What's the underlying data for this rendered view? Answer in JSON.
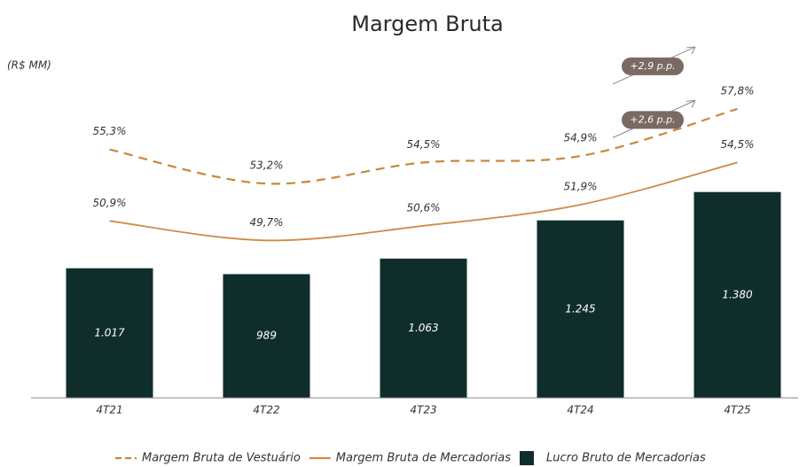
{
  "chart_data": {
    "type": "bar",
    "title": "Margem Bruta",
    "unit_label": "(R$ MM)",
    "categories": [
      "4T21",
      "4T22",
      "4T23",
      "4T24",
      "4T25"
    ],
    "ylim": [
      400,
      2100
    ],
    "y2lim": [
      40,
      62
    ],
    "series": [
      {
        "name": "Margem Bruta de Vestuário",
        "type": "line",
        "axis": "y2",
        "line_style": "dashed",
        "color": "#c8873e",
        "values": [
          55.3,
          53.2,
          54.5,
          54.9,
          57.8
        ],
        "value_labels": [
          "55,3%",
          "53,2%",
          "54,5%",
          "54,9%",
          "57,8%"
        ]
      },
      {
        "name": "Margem Bruta de Mercadorias",
        "type": "line",
        "axis": "y2",
        "line_style": "solid",
        "color": "#cf8a45",
        "values": [
          50.9,
          49.7,
          50.6,
          51.9,
          54.5
        ],
        "value_labels": [
          "50,9%",
          "49,7%",
          "50,6%",
          "51,9%",
          "54,5%"
        ]
      },
      {
        "name": "Lucro Bruto de Mercadorias",
        "type": "bar",
        "color": "#0f2e2b",
        "values": [
          1017,
          989,
          1063,
          1245,
          1380
        ],
        "value_labels": [
          "1.017",
          "989",
          "1.063",
          "1.245",
          "1.380"
        ]
      }
    ],
    "annotations": [
      {
        "text": "+2,9 p.p."
      },
      {
        "text": "+2,6 p.p."
      }
    ]
  }
}
